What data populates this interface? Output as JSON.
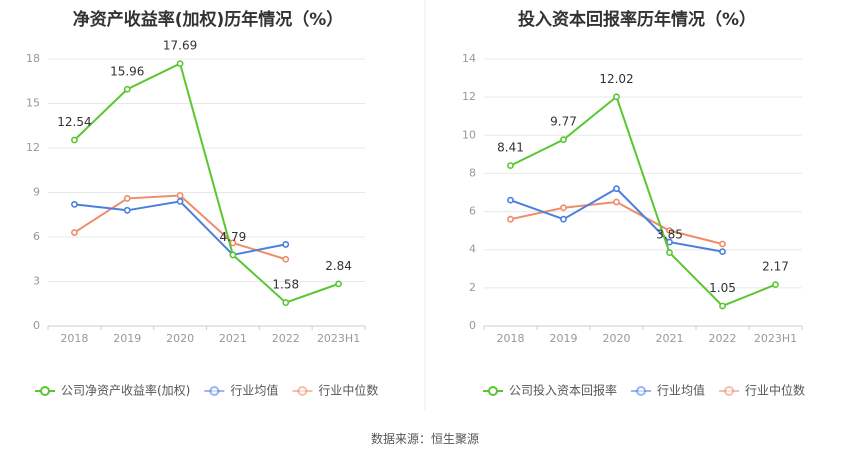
{
  "source_label": "数据来源：恒生聚源",
  "colors": {
    "company": "#5ac731",
    "industry_avg": "#4a7fe0",
    "industry_median": "#ef8c6a"
  },
  "chart_data": [
    {
      "type": "line",
      "title": "净资产收益率(加权)历年情况（%）",
      "categories": [
        "2018",
        "2019",
        "2020",
        "2021",
        "2022",
        "2023H1"
      ],
      "y_ticks": [
        "0",
        "3",
        "6",
        "9",
        "12",
        "15",
        "18"
      ],
      "ylim": [
        0,
        18
      ],
      "grid": true,
      "legend_position": "bottom",
      "series": [
        {
          "key": "company",
          "name": "公司净资产收益率(加权)",
          "values": [
            12.54,
            15.96,
            17.69,
            4.79,
            1.58,
            2.84
          ],
          "labels": [
            "12.54",
            "15.96",
            "17.69",
            "4.79",
            "1.58",
            "2.84"
          ]
        },
        {
          "key": "industry_avg",
          "name": "行业均值",
          "values": [
            8.2,
            7.8,
            8.4,
            4.8,
            5.5,
            null
          ]
        },
        {
          "key": "industry_median",
          "name": "行业中位数",
          "values": [
            6.3,
            8.6,
            8.8,
            5.6,
            4.5,
            null
          ]
        }
      ]
    },
    {
      "type": "line",
      "title": "投入资本回报率历年情况（%）",
      "categories": [
        "2018",
        "2019",
        "2020",
        "2021",
        "2022",
        "2023H1"
      ],
      "y_ticks": [
        "0",
        "2",
        "4",
        "6",
        "8",
        "10",
        "12",
        "14"
      ],
      "ylim": [
        0,
        14
      ],
      "grid": true,
      "legend_position": "bottom",
      "series": [
        {
          "key": "company",
          "name": "公司投入资本回报率",
          "values": [
            8.41,
            9.77,
            12.02,
            3.85,
            1.05,
            2.17
          ],
          "labels": [
            "8.41",
            "9.77",
            "12.02",
            "3.85",
            "1.05",
            "2.17"
          ]
        },
        {
          "key": "industry_avg",
          "name": "行业均值",
          "values": [
            6.6,
            5.6,
            7.2,
            4.4,
            3.9,
            null
          ]
        },
        {
          "key": "industry_median",
          "name": "行业中位数",
          "values": [
            5.6,
            6.2,
            6.5,
            5.0,
            4.3,
            null
          ]
        }
      ]
    }
  ]
}
